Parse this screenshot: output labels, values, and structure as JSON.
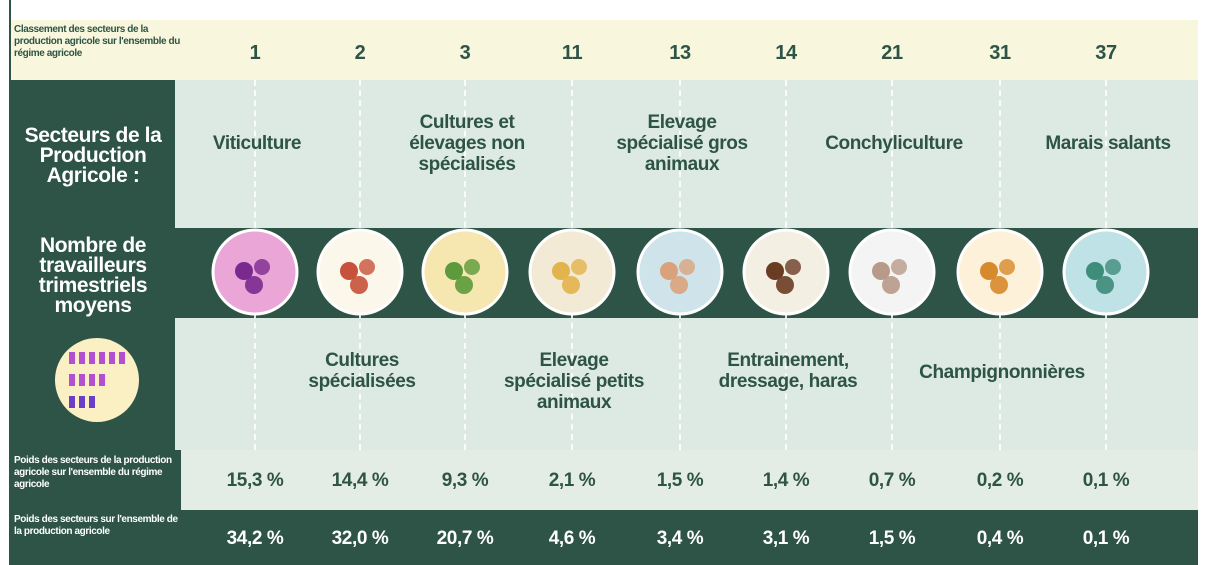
{
  "row_labels": {
    "rank": "Classement des secteurs de la production agricole sur l'ensemble du régime agricole",
    "sectors": "Secteurs de la Production Agricole :",
    "workers": "Nombre de travailleurs trimestriels moyens",
    "weight_regime": "Poids des secteurs de la production agricole sur l'ensemble du régime agricole",
    "weight_total": "Poids des secteurs sur l'ensemble de la production agricole"
  },
  "sectors": [
    {
      "rank": "1",
      "name": "Viticulture",
      "weight_regime": "15,3 %",
      "weight_total": "34,2 %"
    },
    {
      "rank": "2",
      "name": "Cultures spécialisées",
      "weight_regime": "14,4 %",
      "weight_total": "32,0 %"
    },
    {
      "rank": "3",
      "name": "Cultures et élevages non spécialisés",
      "weight_regime": "9,3 %",
      "weight_total": "20,7 %"
    },
    {
      "rank": "11",
      "name": "Elevage spécialisé petits animaux",
      "weight_regime": "2,1 %",
      "weight_total": "4,6 %"
    },
    {
      "rank": "13",
      "name": "Elevage spécialisé gros animaux",
      "weight_regime": "1,5 %",
      "weight_total": "3,4 %"
    },
    {
      "rank": "14",
      "name": "Entrainement, dressage, haras",
      "weight_regime": "1,4 %",
      "weight_total": "3,1 %"
    },
    {
      "rank": "21",
      "name": "Conchyliculture",
      "weight_regime": "0,7 %",
      "weight_total": "1,5 %"
    },
    {
      "rank": "31",
      "name": "Champignonnières",
      "weight_regime": "0,2 %",
      "weight_total": "0,4 %"
    },
    {
      "rank": "37",
      "name": "Marais salants",
      "weight_regime": "0,1 %",
      "weight_total": "0,1 %"
    }
  ]
}
